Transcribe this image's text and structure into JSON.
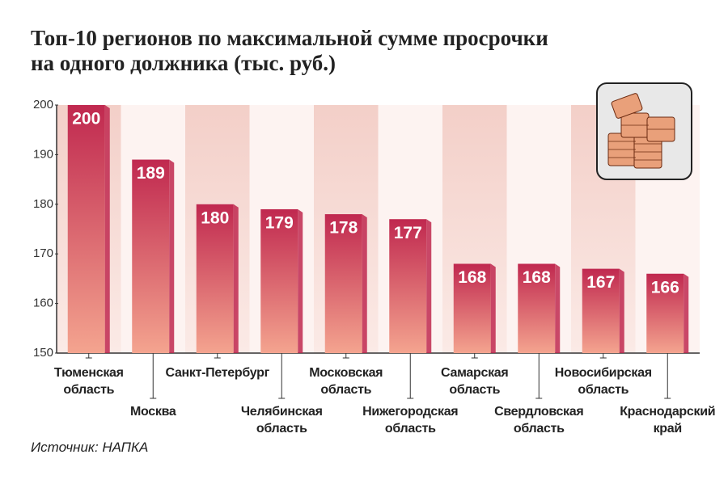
{
  "chart_data": {
    "type": "bar",
    "title": "Топ-10 регионов по максимальной сумме просрочки\nна одного должника (тыс. руб.)",
    "source": "Источник: НАПКА",
    "categories": [
      "Тюменская\nобласть",
      "Москва",
      "Санкт-Петербург",
      "Челябинская\nобласть",
      "Московская\nобласть",
      "Нижегородская\nобласть",
      "Самарская\nобласть",
      "Свердловская\nобласть",
      "Новосибирская\nобласть",
      "Краснодарский\nкрай"
    ],
    "values": [
      200,
      189,
      180,
      179,
      178,
      177,
      168,
      168,
      167,
      166
    ],
    "color": "#c0284f",
    "ylim": [
      150,
      200
    ],
    "yticks": [
      150,
      160,
      170,
      180,
      190,
      200
    ]
  }
}
